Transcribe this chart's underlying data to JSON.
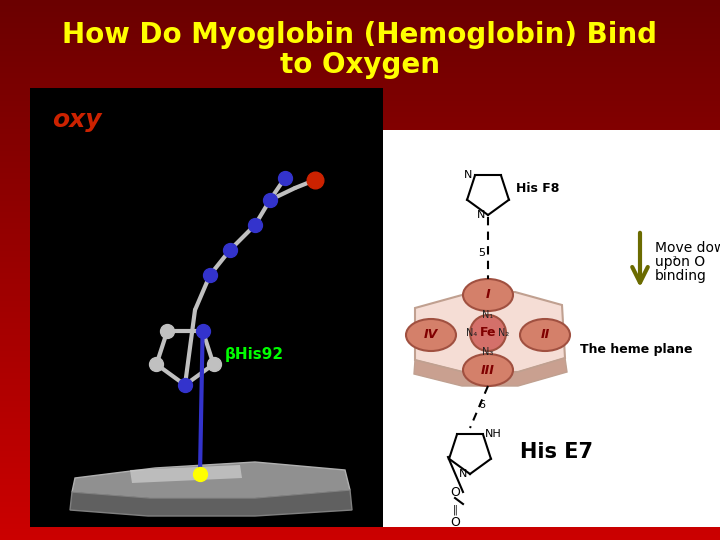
{
  "title_line1": "How Do Myoglobin (Hemoglobin) Bind",
  "title_line2": "to Oxygen",
  "title_color": "#FFFF00",
  "title_fontsize": 20,
  "bg_grad_top": "#6B0000",
  "bg_grad_bottom": "#CC2200",
  "left_panel_bg": "#000000",
  "right_panel_bg": "#FFFFFF",
  "oxy_label": "oxy",
  "oxy_color": "#CC2200",
  "beta_his_label": "βHis92",
  "beta_his_color": "#00FF00",
  "move_down_text_1": "Move down",
  "move_down_text_2": "upon O",
  "move_down_text_3": "binding",
  "move_down_color": "#000000",
  "his_f8_label": "His F8",
  "his_e7_label": "His E7",
  "heme_plane_label": "The heme plane",
  "arrow_color": "#6B6B00",
  "heme_color": "#E8A090",
  "heme_light": "#F5DDD5",
  "heme_shadow": "#C9A090",
  "pyrrole_color": "#D4806A",
  "fe_color": "#D4706A"
}
